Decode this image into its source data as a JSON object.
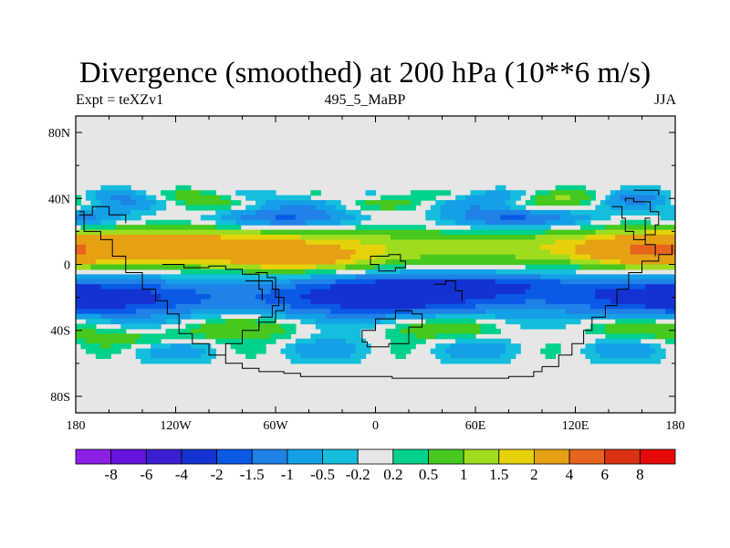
{
  "title": "Divergence (smoothed) at 200 hPa (10**6 m/s)",
  "subtitle_left": "Expt = teXZv1",
  "subtitle_center": "495_5_MaBP",
  "subtitle_right": "JJA",
  "chart_data": {
    "type": "heatmap",
    "variable": "Divergence (smoothed)",
    "level": "200 hPa",
    "units": "10**6 m/s",
    "experiment": "teXZv1",
    "period": "495_5_MaBP",
    "season": "JJA",
    "x_axis": {
      "range": [
        -180,
        180
      ],
      "ticks": [
        -180,
        -120,
        -60,
        0,
        60,
        120,
        180
      ],
      "tick_labels": [
        "180",
        "120W",
        "60W",
        "0",
        "60E",
        "120E",
        "180"
      ]
    },
    "y_axis": {
      "range": [
        -90,
        90
      ],
      "ticks": [
        80,
        40,
        0,
        -40,
        -80
      ],
      "tick_labels": [
        "80N",
        "40N",
        "0",
        "40S",
        "80S"
      ]
    },
    "levels": [
      -8,
      -6,
      -4,
      -2,
      -1.5,
      -1,
      -0.5,
      -0.2,
      0.2,
      0.5,
      1,
      1.5,
      2,
      4,
      6,
      8
    ],
    "level_labels": [
      "-8",
      "-6",
      "-4",
      "-2",
      "-1.5",
      "-1",
      "-0.5",
      "-0.2",
      "0.2",
      "0.5",
      "1",
      "1.5",
      "2",
      "4",
      "6",
      "8"
    ],
    "colors": [
      "#8c1ee6",
      "#6414dc",
      "#3c1ed2",
      "#1432d2",
      "#0a5ae6",
      "#1e82e6",
      "#14a0e6",
      "#14bedc",
      "#e6e6e6",
      "#00d28c",
      "#46c81e",
      "#a0dc1e",
      "#e6d20a",
      "#e6a014",
      "#e6641e",
      "#dc3214",
      "#e60a0a"
    ],
    "background_missing_color": "#e6e6e6",
    "features": [
      {
        "region": "equatorial band 0-25N",
        "sign": "positive",
        "max_approx": 4,
        "description": "divergence maximum over Pacific and Atlantic"
      },
      {
        "region": "10S-35S",
        "sign": "negative",
        "min_approx": -2,
        "description": "convergence band across most longitudes"
      },
      {
        "region": "30N-45N",
        "sign": "mixed",
        "description": "alternating weak positive / negative bands"
      },
      {
        "region": "poleward of 50N and 65S",
        "sign": "near zero",
        "description": "mostly between -0.2 and 0.2"
      }
    ]
  }
}
